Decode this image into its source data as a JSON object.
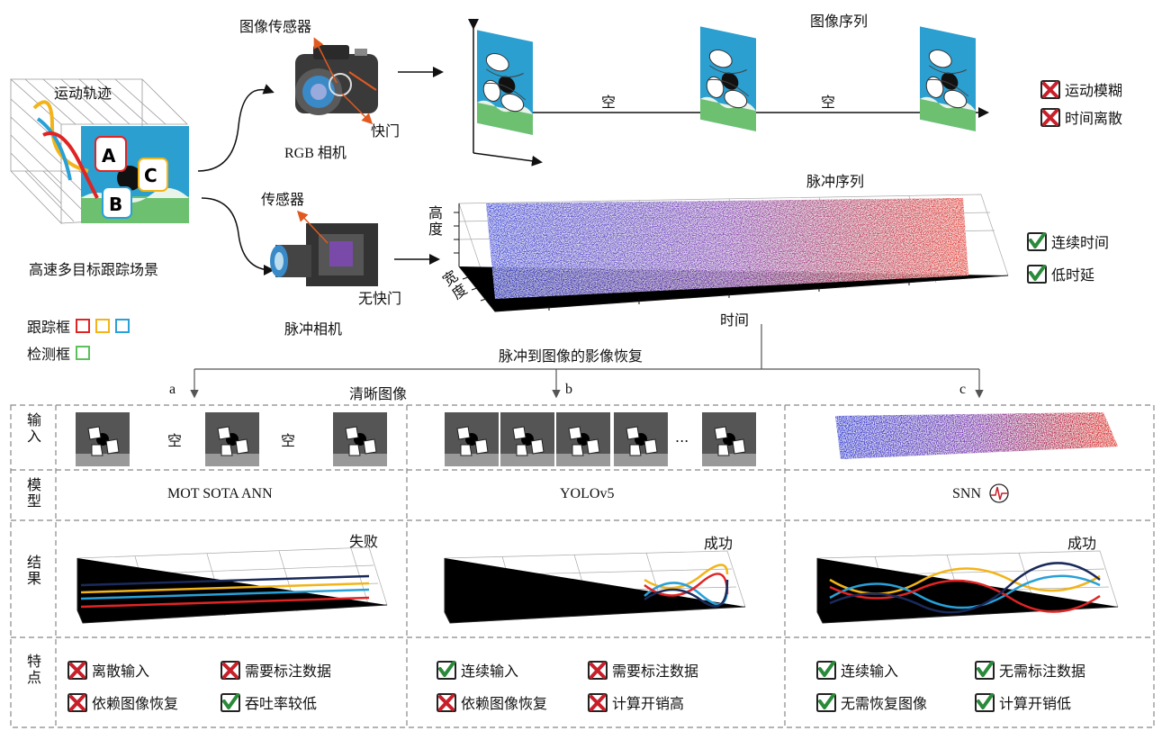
{
  "top": {
    "scene_label": "高速多目标跟踪场景",
    "trajectory_label": "运动轨迹",
    "rgb_camera_label": "RGB 相机",
    "image_sensor_label": "图像传感器",
    "shutter_label": "快门",
    "image_sequence_label": "图像序列",
    "empty_1": "空",
    "empty_2": "空",
    "spike_camera_label": "脉冲相机",
    "sensor_label": "传感器",
    "no_shutter_label": "无快门",
    "spike_sequence_label": "脉冲序列",
    "axis_height": "高度",
    "axis_width": "宽度",
    "axis_time": "时间",
    "reconstruction_label": "脉冲到图像的影像恢复",
    "clear_image_label": "清晰图像",
    "branch_a": "a",
    "branch_b": "b",
    "branch_c": "c",
    "legend_track": "跟踪框",
    "legend_detect": "检测框",
    "objects": [
      "A",
      "B",
      "C"
    ]
  },
  "rgb_traits": [
    {
      "icon": "cross-icon",
      "text": "运动模糊"
    },
    {
      "icon": "cross-icon",
      "text": "时间离散"
    }
  ],
  "spike_traits": [
    {
      "icon": "check-icon",
      "text": "连续时间"
    },
    {
      "icon": "check-icon",
      "text": "低时延"
    }
  ],
  "rows": {
    "input": "输入",
    "model": "模型",
    "result": "结果",
    "features": "特点"
  },
  "columns": [
    {
      "empty_a": "空",
      "empty_b": "空",
      "model": "MOT SOTA ANN",
      "outcome": "失败",
      "features": [
        {
          "icon": "cross-icon",
          "text": "离散输入"
        },
        {
          "icon": "cross-icon",
          "text": "需要标注数据"
        },
        {
          "icon": "cross-icon",
          "text": "依赖图像恢复"
        },
        {
          "icon": "check-icon",
          "text": "吞吐率较低"
        }
      ]
    },
    {
      "ellipsis": "...",
      "model": "YOLOv5",
      "outcome": "成功",
      "features": [
        {
          "icon": "check-icon",
          "text": "连续输入"
        },
        {
          "icon": "cross-icon",
          "text": "需要标注数据"
        },
        {
          "icon": "cross-icon",
          "text": "依赖图像恢复"
        },
        {
          "icon": "cross-icon",
          "text": "计算开销高"
        }
      ]
    },
    {
      "model": "SNN",
      "outcome": "成功",
      "features": [
        {
          "icon": "check-icon",
          "text": "连续输入"
        },
        {
          "icon": "check-icon",
          "text": "无需标注数据"
        },
        {
          "icon": "check-icon",
          "text": "无需恢复图像"
        },
        {
          "icon": "check-icon",
          "text": "计算开销低"
        }
      ]
    }
  ],
  "colors": {
    "cross": "#c8202a",
    "check": "#2a8a3a",
    "track_red": "#e02424",
    "track_yellow": "#f2b418",
    "track_blue": "#28a0d8",
    "detect_green": "#5cc05c",
    "spike_blue": "#2f3fd8",
    "spike_red": "#e83020",
    "sky": "#2a9fd0",
    "grass": "#6cc070"
  }
}
